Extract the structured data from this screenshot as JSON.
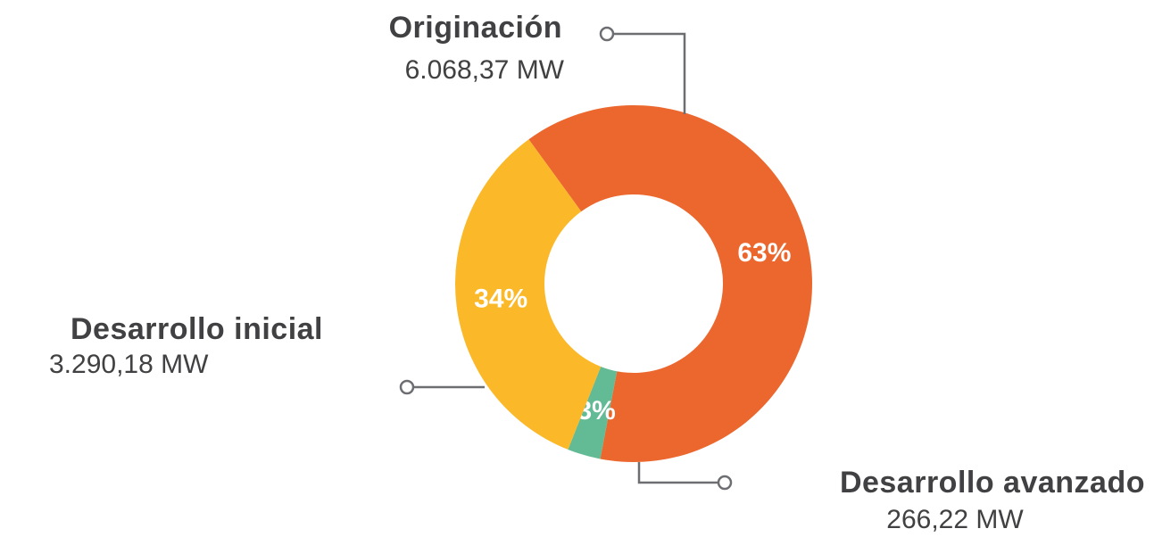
{
  "chart_data": {
    "type": "pie",
    "donut": true,
    "categories": [
      "Originación",
      "Desarrollo avanzado",
      "Desarrollo inicial"
    ],
    "values": [
      63,
      3,
      34
    ],
    "value_labels": [
      "63%",
      "3%",
      "34%"
    ],
    "details": [
      "6.068,37 MW",
      "266,22 MW",
      "3.290,18 MW"
    ],
    "colors": [
      "#eb672e",
      "#62bb94",
      "#fbb829"
    ]
  }
}
